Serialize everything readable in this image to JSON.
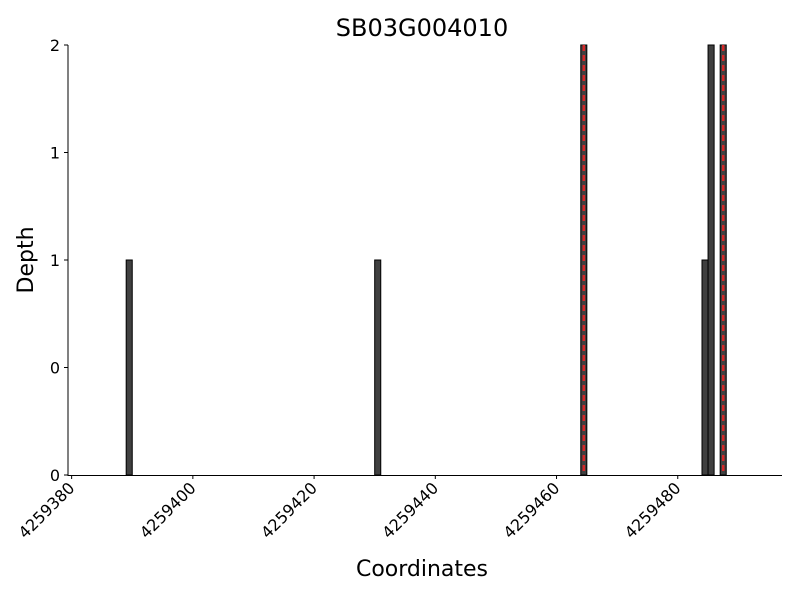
{
  "chart_data": {
    "type": "bar",
    "title": "SB03G004010",
    "xlabel": "Coordinates",
    "ylabel": "Depth",
    "x": [
      4259389,
      4259430,
      4259464,
      4259484,
      4259485,
      4259487
    ],
    "values": [
      1,
      1,
      2,
      1,
      2,
      2
    ],
    "bar_width": 1,
    "color": "#404040",
    "marker_lines": {
      "x": [
        4259464.5,
        4259487.5
      ],
      "color": "#d62728"
    },
    "xlim": [
      4259379.4,
      4259497.2
    ],
    "xticks": [
      4259380,
      4259400,
      4259420,
      4259440,
      4259460,
      4259480
    ],
    "ylim": [
      0,
      2
    ],
    "yticks": [
      0,
      {
        "value": 0.5,
        "label": "0"
      },
      1,
      {
        "value": 1.5,
        "label": "1"
      },
      2
    ]
  }
}
